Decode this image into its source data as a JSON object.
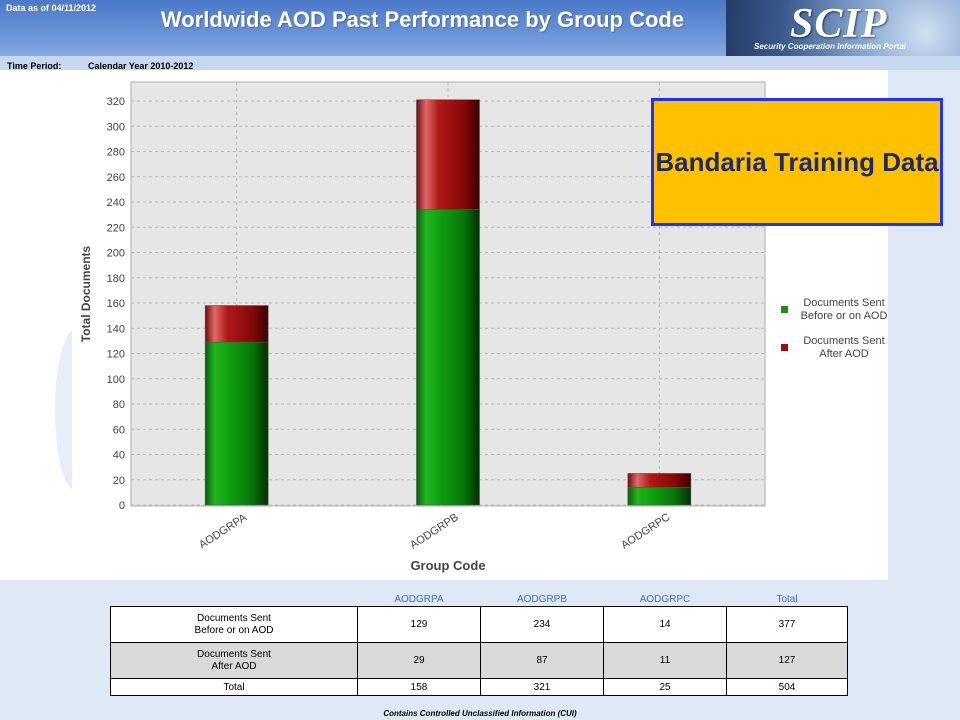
{
  "header": {
    "data_as_of": "Data as of 04/11/2012",
    "title": "Worldwide AOD Past Performance by Group Code",
    "logo_text": "SCIP",
    "logo_subtitle": "Security Cooperation Information Portal"
  },
  "time_period": {
    "label": "Time Period:",
    "value": "Calendar Year 2010-2012"
  },
  "callout": {
    "text": "Bandaria Training Data",
    "background": "#ffc000",
    "border": "#1f31ff"
  },
  "chart_data": {
    "type": "bar",
    "stacked": true,
    "categories": [
      "AODGRPA",
      "AODGRPB",
      "AODGRPC"
    ],
    "series": [
      {
        "name": "Documents Sent Before or on AOD",
        "values": [
          129,
          234,
          14
        ],
        "color": "#1a8f1a"
      },
      {
        "name": "Documents Sent After AOD",
        "values": [
          29,
          87,
          11
        ],
        "color": "#9b0e0e"
      }
    ],
    "xlabel": "Group Code",
    "ylabel": "Total Documents",
    "ylim": [
      0,
      320
    ],
    "yticks": [
      0,
      20,
      40,
      60,
      80,
      100,
      120,
      140,
      160,
      180,
      200,
      220,
      240,
      260,
      280,
      300,
      320
    ],
    "grid": true,
    "legend_position": "right"
  },
  "table": {
    "headers": [
      "AODGRPA",
      "AODGRPB",
      "AODGRPC",
      "Total"
    ],
    "rows": [
      {
        "label": "Documents Sent\nBefore or on AOD",
        "values": [
          "129",
          "234",
          "14",
          "377"
        ]
      },
      {
        "label": "Documents Sent\nAfter AOD",
        "values": [
          "29",
          "87",
          "11",
          "127"
        ]
      },
      {
        "label": "Total",
        "values": [
          "158",
          "321",
          "25",
          "504"
        ]
      }
    ]
  },
  "footer": {
    "note": "Contains Controlled Unclassified Information (CUI)"
  }
}
